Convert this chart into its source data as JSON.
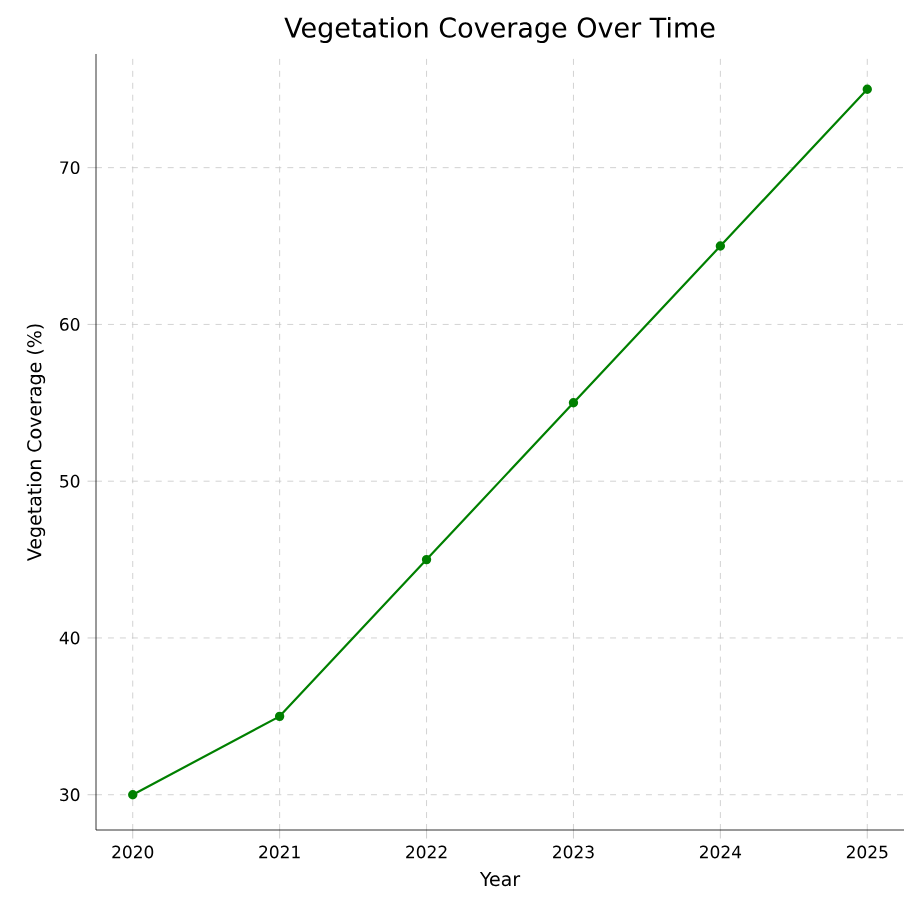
{
  "chart_data": {
    "type": "line",
    "title": "Vegetation Coverage Over Time",
    "xlabel": "Year",
    "ylabel": "Vegetation Coverage (%)",
    "x": [
      2020,
      2021,
      2022,
      2023,
      2024,
      2025
    ],
    "series": [
      {
        "color": "#008000",
        "values": [
          30,
          35,
          45,
          55,
          65,
          75
        ]
      }
    ],
    "xlim": [
      2019.75,
      2025.25
    ],
    "ylim": [
      27.75,
      77.25
    ],
    "xticks": [
      2020,
      2021,
      2022,
      2023,
      2024,
      2025
    ],
    "yticks": [
      30,
      40,
      50,
      60,
      70
    ],
    "grid": true,
    "marker": "circle",
    "line_style": "solid"
  }
}
